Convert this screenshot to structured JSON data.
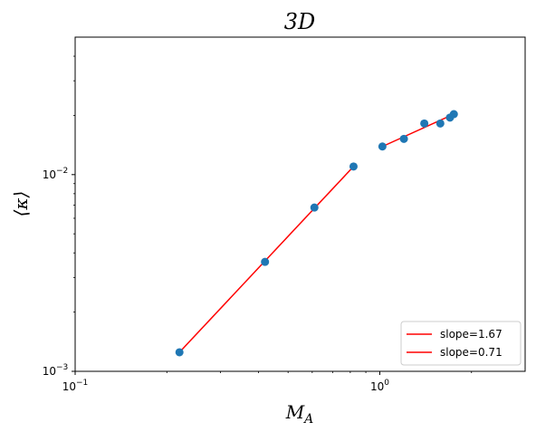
{
  "chart_data": {
    "type": "scatter",
    "title": "3D",
    "xlabel": "M_A",
    "ylabel": "⟨κ⟩",
    "xscale": "log",
    "yscale": "log",
    "xlim": [
      0.1,
      3.0
    ],
    "ylim": [
      0.001,
      0.05
    ],
    "grid": false,
    "legend_position": "lower-right",
    "x_ticks": [
      {
        "value": 0.1,
        "base": "10",
        "exp": "−1"
      },
      {
        "value": 1.0,
        "base": "10",
        "exp": "0"
      }
    ],
    "y_ticks": [
      {
        "value": 0.001,
        "base": "10",
        "exp": "−3"
      },
      {
        "value": 0.01,
        "base": "10",
        "exp": "−2"
      }
    ],
    "points": {
      "color": "#1f77b4",
      "x": [
        0.22,
        0.42,
        0.61,
        0.82,
        1.02,
        1.2,
        1.4,
        1.58,
        1.7,
        1.75
      ],
      "y": [
        0.00125,
        0.0036,
        0.0068,
        0.011,
        0.0139,
        0.0152,
        0.0182,
        0.0182,
        0.0195,
        0.0203
      ]
    },
    "series": [
      {
        "name": "slope=1.67",
        "color": "#ff0000",
        "x": [
          0.22,
          0.82
        ],
        "y": [
          0.00125,
          0.011
        ]
      },
      {
        "name": "slope=0.71",
        "color": "#ff0000",
        "x": [
          1.02,
          1.75
        ],
        "y": [
          0.0139,
          0.0203
        ]
      }
    ]
  }
}
